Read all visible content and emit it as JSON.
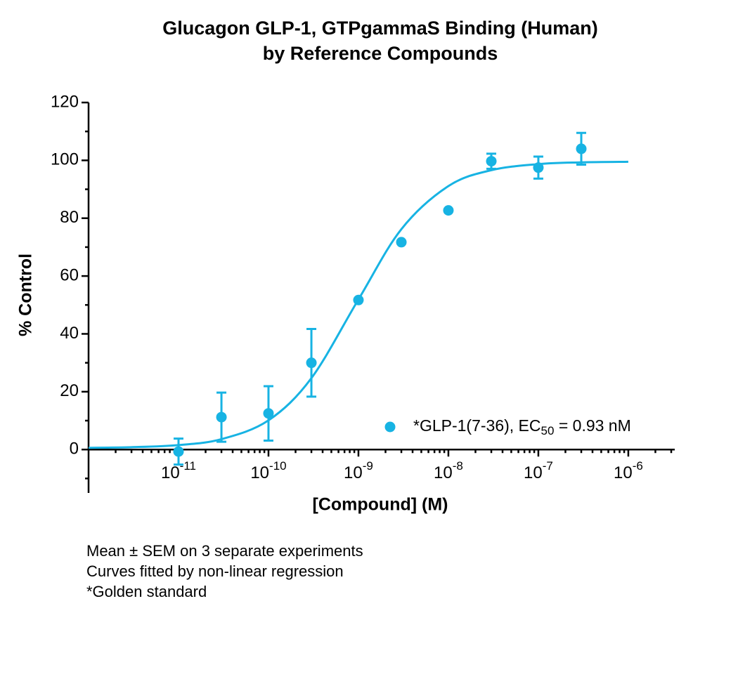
{
  "chart_data": {
    "type": "scatter",
    "title": [
      "Glucagon GLP-1, GTPgammaS Binding (Human)",
      "by Reference Compounds"
    ],
    "x_label": "[Compound] (M)",
    "y_label": "% Control",
    "x_scale": "log",
    "xlim": [
      1e-12,
      3e-06
    ],
    "xticks": [
      {
        "value": 1e-11,
        "label": "10",
        "exponent": "-11"
      },
      {
        "value": 1e-10,
        "label": "10",
        "exponent": "-10"
      },
      {
        "value": 1e-09,
        "label": "10",
        "exponent": "-9"
      },
      {
        "value": 1e-08,
        "label": "10",
        "exponent": "-8"
      },
      {
        "value": 1e-07,
        "label": "10",
        "exponent": "-7"
      },
      {
        "value": 1e-06,
        "label": "10",
        "exponent": "-6"
      }
    ],
    "ylim": [
      -15,
      120
    ],
    "yticks": [
      0,
      20,
      40,
      60,
      80,
      100,
      120
    ],
    "yticks_minor": [
      -10,
      10,
      30,
      50,
      70,
      90,
      110
    ],
    "series": [
      {
        "name": {
          "text": "*GLP-1(7-36), EC",
          "subscript": "50",
          "after": " = 0.93 nM"
        },
        "color": "#17b3e3",
        "x": [
          1e-11,
          3e-11,
          1e-10,
          3e-10,
          1e-09,
          3e-09,
          1e-08,
          3e-08,
          1e-07,
          3e-07
        ],
        "values": [
          -0.7,
          11.2,
          12.5,
          30,
          51.7,
          71.7,
          82.7,
          99.7,
          97.5,
          104
        ],
        "errors": [
          4.5,
          8.5,
          9.4,
          11.7,
          null,
          null,
          null,
          2.6,
          3.8,
          5.5
        ]
      }
    ],
    "fit": {
      "color": "#17b3e3",
      "x": [
        1e-12,
        3e-12,
        1e-11,
        3e-11,
        1e-10,
        3e-10,
        1e-09,
        3e-09,
        1e-08,
        3e-08,
        1e-07,
        3e-07,
        1e-06
      ],
      "values": [
        0.61,
        0.82,
        1.55,
        3.6,
        10.1,
        24.7,
        51.9,
        76.2,
        91.1,
        96.6,
        98.7,
        99.3,
        99.5
      ]
    },
    "notes": [
      "Mean ± SEM on 3 separate experiments",
      "Curves fitted by non-linear regression",
      "*Golden standard"
    ]
  }
}
